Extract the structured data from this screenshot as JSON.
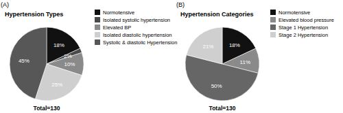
{
  "chart_data": [
    {
      "type": "pie",
      "title": "Hypertension Types",
      "annotations": [
        "(A)",
        "Total=130"
      ],
      "categories": [
        "Normotensive",
        "Isolated systolic hypertension",
        "Elevated BP",
        "Isolated diastolic hypertension",
        "Systolic & diastolic Hypertension"
      ],
      "values": [
        18,
        2,
        10,
        25,
        45
      ],
      "value_labels": [
        "18%",
        "2%",
        "10%",
        "25%",
        "45%"
      ],
      "colors": [
        "#111111",
        "#4a4a4a",
        "#8a8a8a",
        "#cfcfcf",
        "#575757"
      ],
      "data_labels": true,
      "legend": "right"
    },
    {
      "type": "pie",
      "title": "Hypertension Categories",
      "annotations": [
        "(B)",
        "Total=130"
      ],
      "categories": [
        "Normotensive",
        "Elevated blood pressure",
        "Stage 1 Hypertension",
        "Stage 2 Hypertension"
      ],
      "values": [
        18,
        11,
        50,
        21
      ],
      "value_labels": [
        "18%",
        "11%",
        "50%",
        "21%"
      ],
      "colors": [
        "#111111",
        "#8a8a8a",
        "#666666",
        "#cfcfcf"
      ],
      "data_labels": true,
      "legend": "right"
    }
  ]
}
